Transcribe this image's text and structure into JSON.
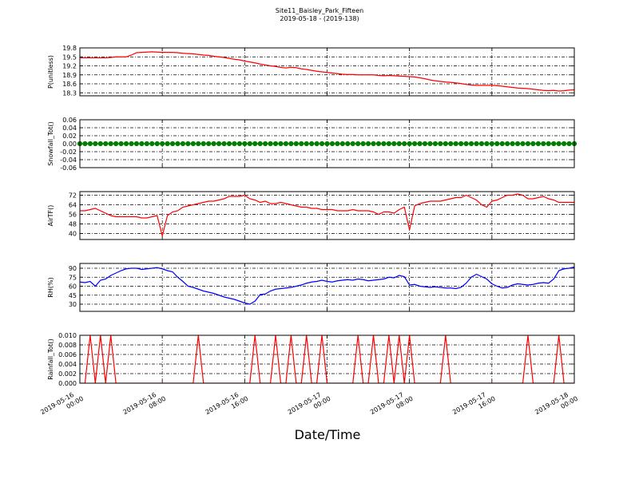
{
  "figure": {
    "title": "Site11_Baisley_Park_Fifteen",
    "subtitle": "2019-05-18 - (2019-138)",
    "xlabel": "Date/Time",
    "xlim": [
      "2019-05-16 00:00",
      "2019-05-18 00:00"
    ],
    "xticks": [
      "2019-05-16 00:00",
      "2019-05-16 08:00",
      "2019-05-16 16:00",
      "2019-05-17 00:00",
      "2019-05-17 08:00",
      "2019-05-17 16:00",
      "2019-05-18 00:00"
    ],
    "x": [
      "2019-05-16 00:00",
      "2019-05-16 00:30",
      "2019-05-16 01:00",
      "2019-05-16 01:30",
      "2019-05-16 02:00",
      "2019-05-16 02:30",
      "2019-05-16 03:00",
      "2019-05-16 03:30",
      "2019-05-16 04:00",
      "2019-05-16 04:30",
      "2019-05-16 05:00",
      "2019-05-16 05:30",
      "2019-05-16 06:00",
      "2019-05-16 06:30",
      "2019-05-16 07:00",
      "2019-05-16 07:30",
      "2019-05-16 08:00",
      "2019-05-16 08:30",
      "2019-05-16 09:00",
      "2019-05-16 09:30",
      "2019-05-16 10:00",
      "2019-05-16 10:30",
      "2019-05-16 11:00",
      "2019-05-16 11:30",
      "2019-05-16 12:00",
      "2019-05-16 12:30",
      "2019-05-16 13:00",
      "2019-05-16 13:30",
      "2019-05-16 14:00",
      "2019-05-16 14:30",
      "2019-05-16 15:00",
      "2019-05-16 15:30",
      "2019-05-16 16:00",
      "2019-05-16 16:30",
      "2019-05-16 17:00",
      "2019-05-16 17:30",
      "2019-05-16 18:00",
      "2019-05-16 18:30",
      "2019-05-16 19:00",
      "2019-05-16 19:30",
      "2019-05-16 20:00",
      "2019-05-16 20:30",
      "2019-05-16 21:00",
      "2019-05-16 21:30",
      "2019-05-16 22:00",
      "2019-05-16 22:30",
      "2019-05-16 23:00",
      "2019-05-16 23:30",
      "2019-05-17 00:00",
      "2019-05-17 00:30",
      "2019-05-17 01:00",
      "2019-05-17 01:30",
      "2019-05-17 02:00",
      "2019-05-17 02:30",
      "2019-05-17 03:00",
      "2019-05-17 03:30",
      "2019-05-17 04:00",
      "2019-05-17 04:30",
      "2019-05-17 05:00",
      "2019-05-17 05:30",
      "2019-05-17 06:00",
      "2019-05-17 06:30",
      "2019-05-17 07:00",
      "2019-05-17 07:30",
      "2019-05-17 08:00",
      "2019-05-17 08:30",
      "2019-05-17 09:00",
      "2019-05-17 09:30",
      "2019-05-17 10:00",
      "2019-05-17 10:30",
      "2019-05-17 11:00",
      "2019-05-17 11:30",
      "2019-05-17 12:00",
      "2019-05-17 12:30",
      "2019-05-17 13:00",
      "2019-05-17 13:30",
      "2019-05-17 14:00",
      "2019-05-17 14:30",
      "2019-05-17 15:00",
      "2019-05-17 15:30",
      "2019-05-17 16:00",
      "2019-05-17 16:30",
      "2019-05-17 17:00",
      "2019-05-17 17:30",
      "2019-05-17 18:00",
      "2019-05-17 18:30",
      "2019-05-17 19:00",
      "2019-05-17 19:30",
      "2019-05-17 20:00",
      "2019-05-17 20:30",
      "2019-05-17 21:00",
      "2019-05-17 21:30",
      "2019-05-17 22:00",
      "2019-05-17 22:30",
      "2019-05-17 23:00",
      "2019-05-17 23:30",
      "2019-05-18 00:00"
    ]
  },
  "chart_data": [
    {
      "type": "line",
      "ylabel": "P(unitless)",
      "color": "#ff0000",
      "grid": true,
      "ylim": [
        18.2,
        19.8
      ],
      "yticks": [
        18.3,
        18.6,
        18.9,
        19.2,
        19.5,
        19.8
      ],
      "values": [
        19.47,
        19.47,
        19.47,
        19.47,
        19.47,
        19.47,
        19.48,
        19.5,
        19.5,
        19.5,
        19.56,
        19.64,
        19.65,
        19.66,
        19.67,
        19.66,
        19.65,
        19.65,
        19.65,
        19.64,
        19.62,
        19.61,
        19.6,
        19.58,
        19.56,
        19.55,
        19.52,
        19.5,
        19.48,
        19.45,
        19.42,
        19.4,
        19.36,
        19.33,
        19.3,
        19.26,
        19.23,
        19.2,
        19.18,
        19.15,
        19.13,
        19.15,
        19.14,
        19.1,
        19.08,
        19.05,
        19.02,
        19.0,
        18.98,
        18.96,
        18.94,
        18.92,
        18.91,
        18.91,
        18.9,
        18.9,
        18.9,
        18.9,
        18.88,
        18.87,
        18.88,
        18.87,
        18.86,
        18.85,
        18.84,
        18.83,
        18.8,
        18.77,
        18.73,
        18.7,
        18.68,
        18.66,
        18.65,
        18.63,
        18.61,
        18.58,
        18.56,
        18.55,
        18.55,
        18.55,
        18.55,
        18.54,
        18.52,
        18.5,
        18.48,
        18.46,
        18.45,
        18.44,
        18.42,
        18.4,
        18.38,
        18.37,
        18.38,
        18.36,
        18.37,
        18.39,
        18.4
      ]
    },
    {
      "type": "line",
      "ylabel": "Snowfall_Tot()",
      "color": "#008000",
      "grid": true,
      "marker": true,
      "ylim": [
        -0.06,
        0.06
      ],
      "yticks": [
        -0.06,
        -0.04,
        -0.02,
        {
          "value": 0,
          "label": "0.00"
        },
        0.02,
        0.04,
        0.06
      ],
      "values": [
        0,
        0,
        0,
        0,
        0,
        0,
        0,
        0,
        0,
        0,
        0,
        0,
        0,
        0,
        0,
        0,
        0,
        0,
        0,
        0,
        0,
        0,
        0,
        0,
        0,
        0,
        0,
        0,
        0,
        0,
        0,
        0,
        0,
        0,
        0,
        0,
        0,
        0,
        0,
        0,
        0,
        0,
        0,
        0,
        0,
        0,
        0,
        0,
        0,
        0,
        0,
        0,
        0,
        0,
        0,
        0,
        0,
        0,
        0,
        0,
        0,
        0,
        0,
        0,
        0,
        0,
        0,
        0,
        0,
        0,
        0,
        0,
        0,
        0,
        0,
        0,
        0,
        0,
        0,
        0,
        0,
        0,
        0,
        0,
        0,
        0,
        0,
        0,
        0,
        0,
        0,
        0,
        0,
        0,
        0,
        0,
        0
      ]
    },
    {
      "type": "line",
      "ylabel": "AirTF()",
      "color": "#ff0000",
      "grid": true,
      "ylim": [
        35,
        75
      ],
      "yticks": [
        40,
        48,
        56,
        64,
        72
      ],
      "values": [
        59,
        59,
        60,
        61,
        59,
        57,
        55,
        54,
        54,
        54,
        54,
        54,
        53,
        53,
        54,
        55,
        38,
        55,
        58,
        59,
        62,
        63,
        64,
        65,
        66,
        67,
        67,
        68,
        69,
        71,
        71,
        71,
        72,
        69,
        68,
        66,
        67,
        65,
        65,
        66,
        65,
        64,
        63,
        62,
        62,
        61,
        61,
        60,
        60,
        60,
        59,
        59,
        59,
        60,
        59,
        59,
        59,
        58,
        56,
        58,
        58,
        57,
        60,
        62,
        43,
        63,
        65,
        66,
        67,
        67,
        67,
        68,
        69,
        70,
        70,
        72,
        70,
        68,
        64,
        62,
        67,
        68,
        70,
        72,
        72,
        73,
        72,
        69,
        69,
        70,
        71,
        69,
        68,
        66,
        66,
        66,
        66
      ]
    },
    {
      "type": "line",
      "ylabel": "RH(%)",
      "color": "#0000ff",
      "grid": true,
      "ylim": [
        18,
        98
      ],
      "yticks": [
        30,
        45,
        60,
        75,
        90
      ],
      "values": [
        67,
        66,
        68,
        60,
        70,
        72,
        78,
        82,
        86,
        89,
        90,
        90,
        88,
        89,
        90,
        91,
        89,
        86,
        84,
        75,
        68,
        60,
        58,
        55,
        52,
        50,
        48,
        45,
        42,
        40,
        38,
        35,
        32,
        30,
        35,
        46,
        47,
        52,
        55,
        56,
        57,
        58,
        60,
        62,
        65,
        67,
        68,
        70,
        68,
        67,
        69,
        70,
        71,
        70,
        72,
        71,
        69,
        70,
        71,
        72,
        75,
        74,
        78,
        76,
        62,
        63,
        60,
        59,
        58,
        59,
        58,
        57,
        57,
        56,
        58,
        65,
        75,
        80,
        76,
        72,
        64,
        60,
        57,
        58,
        62,
        64,
        63,
        62,
        63,
        65,
        66,
        65,
        72,
        86,
        89,
        90,
        92
      ]
    },
    {
      "type": "line",
      "ylabel": "Rainfall_Tot()",
      "color": "#ff0000",
      "grid": true,
      "ylim": [
        0,
        0.01
      ],
      "yticks": [
        {
          "value": 0,
          "label": "0.000"
        },
        0.002,
        0.004,
        0.006,
        0.008,
        {
          "value": 0.01,
          "label": "0.010"
        }
      ],
      "values": [
        0,
        0,
        0.01,
        0,
        0.01,
        0,
        0.01,
        0,
        0,
        0,
        0,
        0,
        0,
        0,
        0,
        0,
        0,
        0,
        0,
        0,
        0,
        0,
        0,
        0.01,
        0,
        0,
        0,
        0,
        0,
        0,
        0,
        0,
        0,
        0,
        0.01,
        0,
        0,
        0,
        0.01,
        0,
        0,
        0.01,
        0,
        0,
        0.01,
        0,
        0,
        0.01,
        0,
        0,
        0,
        0,
        0,
        0,
        0.01,
        0,
        0,
        0.01,
        0,
        0,
        0.01,
        0,
        0.01,
        0,
        0.01,
        0,
        0,
        0,
        0,
        0,
        0,
        0.01,
        0,
        0,
        0,
        0,
        0,
        0,
        0,
        0,
        0,
        0,
        0,
        0,
        0,
        0,
        0,
        0.01,
        0,
        0,
        0,
        0,
        0,
        0.01,
        0,
        0,
        0
      ]
    }
  ]
}
